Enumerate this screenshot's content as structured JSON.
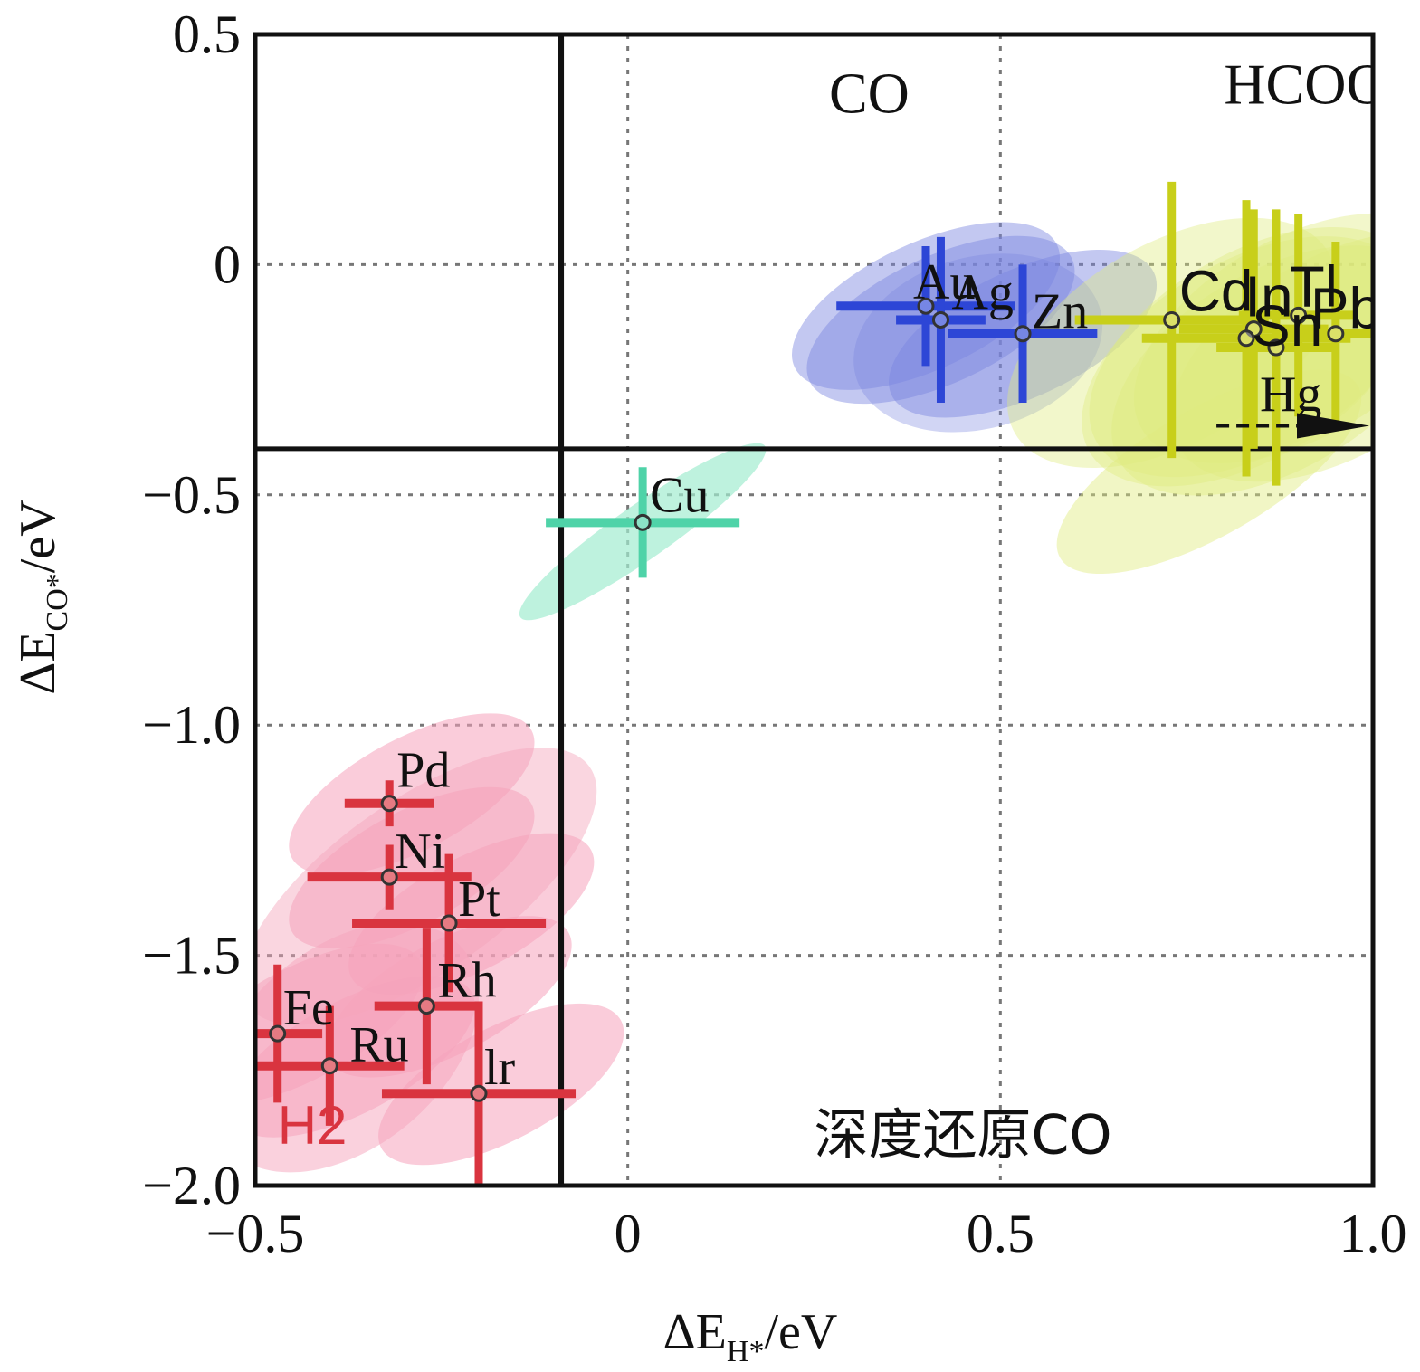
{
  "chart_data": {
    "type": "scatter",
    "xlabel": "ΔE",
    "xlabel_sub": "H*",
    "xlabel_unit": "/eV",
    "ylabel": "ΔE",
    "ylabel_sub": "CO*",
    "ylabel_unit": "/eV",
    "xlim": [
      -0.5,
      1.0
    ],
    "ylim": [
      -2.0,
      0.5
    ],
    "xticks": [
      -0.5,
      0,
      0.5,
      1.0
    ],
    "xtick_labels": [
      "−0.5",
      "0",
      "0.5",
      "1.0"
    ],
    "yticks": [
      0.5,
      0,
      -0.5,
      -1.0,
      -1.5,
      -2.0
    ],
    "ytick_labels": [
      "0.5",
      "0",
      "−0.5",
      "−1.0",
      "−1.5",
      "−2.0"
    ],
    "grid": true,
    "thresholds": {
      "x": -0.09,
      "y": -0.4
    },
    "region_labels": [
      {
        "text": "CO",
        "x": 0.27,
        "y": 0.33
      },
      {
        "text": "HCOOH",
        "x": 0.8,
        "y": 0.35
      },
      {
        "text": "深度还原CO",
        "x": 0.25,
        "y": -1.93
      },
      {
        "text": "H2",
        "x": -0.47,
        "y": -1.91
      }
    ],
    "colors": {
      "H2": "#d9343f",
      "H2_fill": "#f5a3bb",
      "CO": "#2d46d6",
      "CO_fill": "#7a86e0",
      "Cu": "#4fd3a8",
      "Cu_fill": "#a3ecd0",
      "HCOOH": "#c8cf1a",
      "HCOOH_fill": "#dfea7e"
    },
    "series": [
      {
        "name": "H2",
        "points": [
          {
            "label": "Pd",
            "x": -0.32,
            "y": -1.17,
            "xerr": 0.06,
            "yerr": 0.05
          },
          {
            "label": "Ni",
            "x": -0.32,
            "y": -1.33,
            "xerr": 0.11,
            "yerr": 0.07
          },
          {
            "label": "Pt",
            "x": -0.24,
            "y": -1.43,
            "xerr": 0.13,
            "yerr": 0.15
          },
          {
            "label": "Rh",
            "x": -0.27,
            "y": -1.61,
            "xerr": 0.07,
            "yerr": 0.17
          },
          {
            "label": "Fe",
            "x": -0.47,
            "y": -1.67,
            "xerr": 0.06,
            "yerr": 0.15
          },
          {
            "label": "Ru",
            "x": -0.4,
            "y": -1.74,
            "xerr": 0.1,
            "yerr": 0.13
          },
          {
            "label": "lr",
            "x": -0.2,
            "y": -1.8,
            "xerr": 0.13,
            "yerr": 0.2
          }
        ]
      },
      {
        "name": "CO",
        "points": [
          {
            "label": "Au",
            "x": 0.4,
            "y": -0.09,
            "xerr": 0.12,
            "yerr": 0.13
          },
          {
            "label": "Ag",
            "x": 0.42,
            "y": -0.12,
            "xerr": 0.06,
            "yerr": 0.18
          },
          {
            "label": "Zn",
            "x": 0.53,
            "y": -0.15,
            "xerr": 0.1,
            "yerr": 0.15
          }
        ]
      },
      {
        "name": "Cu",
        "points": [
          {
            "label": "Cu",
            "x": 0.02,
            "y": -0.56,
            "xerr": 0.13,
            "yerr": 0.12
          }
        ]
      },
      {
        "name": "HCOOH",
        "points": [
          {
            "label": "Cd",
            "x": 0.73,
            "y": -0.12,
            "xerr": 0.13,
            "yerr": 0.3
          },
          {
            "label": "In",
            "x": 0.84,
            "y": -0.14,
            "xerr": 0.1,
            "yerr": 0.26
          },
          {
            "label": "Tl",
            "x": 0.9,
            "y": -0.11,
            "xerr": 0.08,
            "yerr": 0.22
          },
          {
            "label": "Pb",
            "x": 0.95,
            "y": -0.15,
            "xerr": 0.07,
            "yerr": 0.2
          },
          {
            "label": "Sn",
            "x": 0.83,
            "y": -0.16,
            "xerr": 0.14,
            "yerr": 0.3
          },
          {
            "label": "Hg",
            "x": 0.87,
            "y": -0.18,
            "xerr": 0.08,
            "yerr": 0.3
          }
        ]
      }
    ]
  }
}
